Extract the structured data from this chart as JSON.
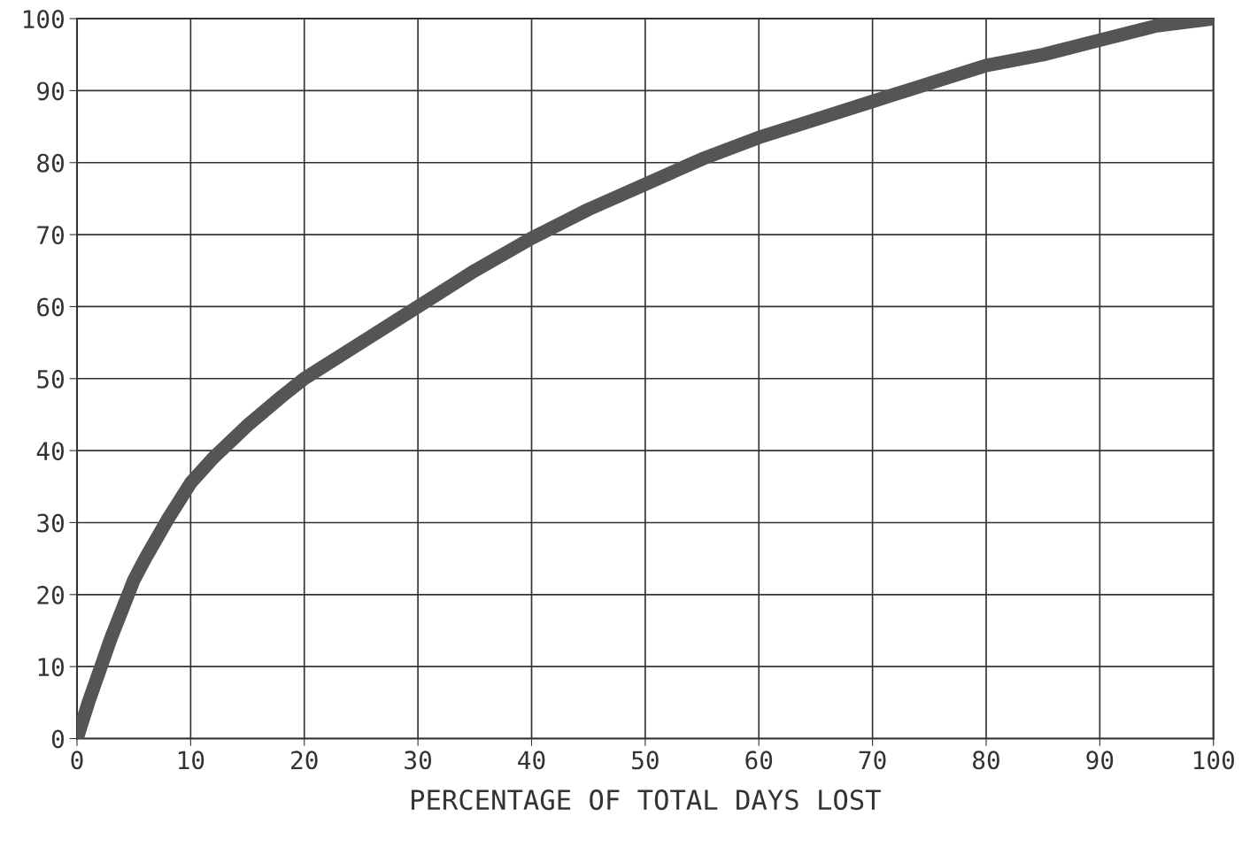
{
  "chart_data": {
    "type": "line",
    "xlabel": "PERCENTAGE OF TOTAL DAYS LOST",
    "x": [
      0,
      1,
      2,
      3,
      4,
      5,
      6,
      8,
      10,
      12,
      15,
      18,
      20,
      25,
      30,
      35,
      40,
      45,
      50,
      55,
      60,
      65,
      70,
      75,
      80,
      85,
      90,
      95,
      100
    ],
    "series": [
      {
        "color": "#555555",
        "values": [
          0,
          5,
          9.5,
          14,
          18,
          22,
          25,
          30.5,
          35.5,
          39,
          43.5,
          47.5,
          50,
          55,
          60,
          65,
          69.5,
          73.5,
          77,
          80.5,
          83.5,
          86,
          88.5,
          91,
          93.5,
          95,
          97,
          99,
          100
        ]
      }
    ],
    "xlim": [
      0,
      100
    ],
    "ylim": [
      0,
      100
    ],
    "xticks": [
      0,
      10,
      20,
      30,
      40,
      50,
      60,
      70,
      80,
      90,
      100
    ],
    "yticks": [
      0,
      10,
      20,
      30,
      40,
      50,
      60,
      70,
      80,
      90,
      100
    ],
    "grid": true,
    "line_style": "solid"
  }
}
